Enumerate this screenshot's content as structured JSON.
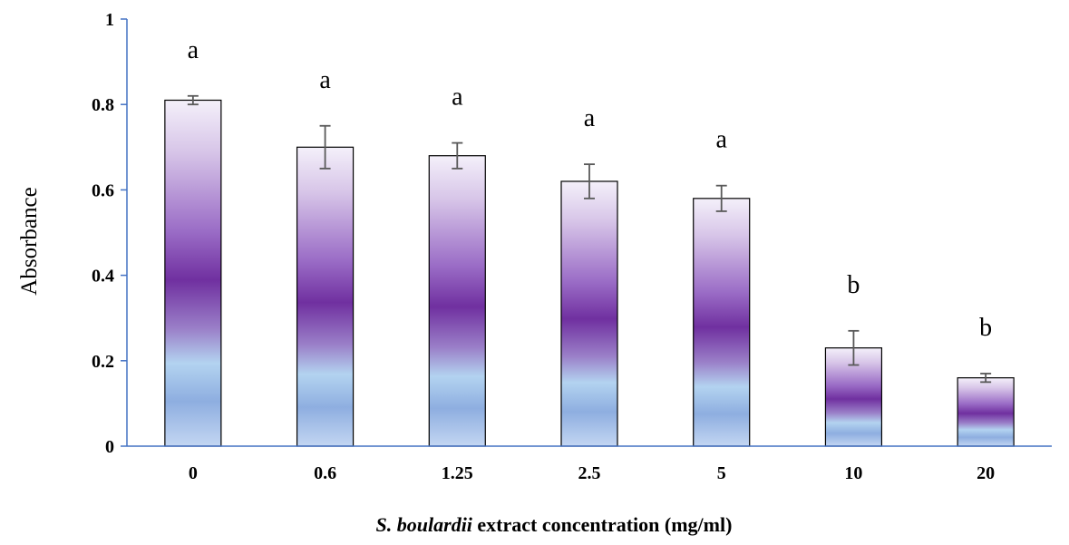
{
  "chart_data": {
    "type": "bar",
    "categories": [
      "0",
      "0.6",
      "1.25",
      "2.5",
      "5",
      "10",
      "20"
    ],
    "values": [
      0.81,
      0.7,
      0.68,
      0.62,
      0.58,
      0.23,
      0.16
    ],
    "errors": [
      0.01,
      0.05,
      0.03,
      0.04,
      0.03,
      0.04,
      0.01
    ],
    "significance": [
      "a",
      "a",
      "a",
      "a",
      "a",
      "b",
      "b"
    ],
    "ylabel": "Absorbance",
    "xlabel_italic": "S. boulardii",
    "xlabel_rest": " extract concentration (mg/ml)",
    "ylim": [
      0,
      1
    ],
    "yticks": [
      "0",
      "0.2",
      "0.4",
      "0.6",
      "0.8",
      "1"
    ],
    "grid": false,
    "colors": {
      "axis": "#4472c4",
      "bar_outline": "#000000",
      "error_bar": "#595959",
      "gradient_light": "#f4f0fa",
      "gradient_purple": "#7030a0",
      "gradient_blue": "#a9c6ea"
    }
  }
}
